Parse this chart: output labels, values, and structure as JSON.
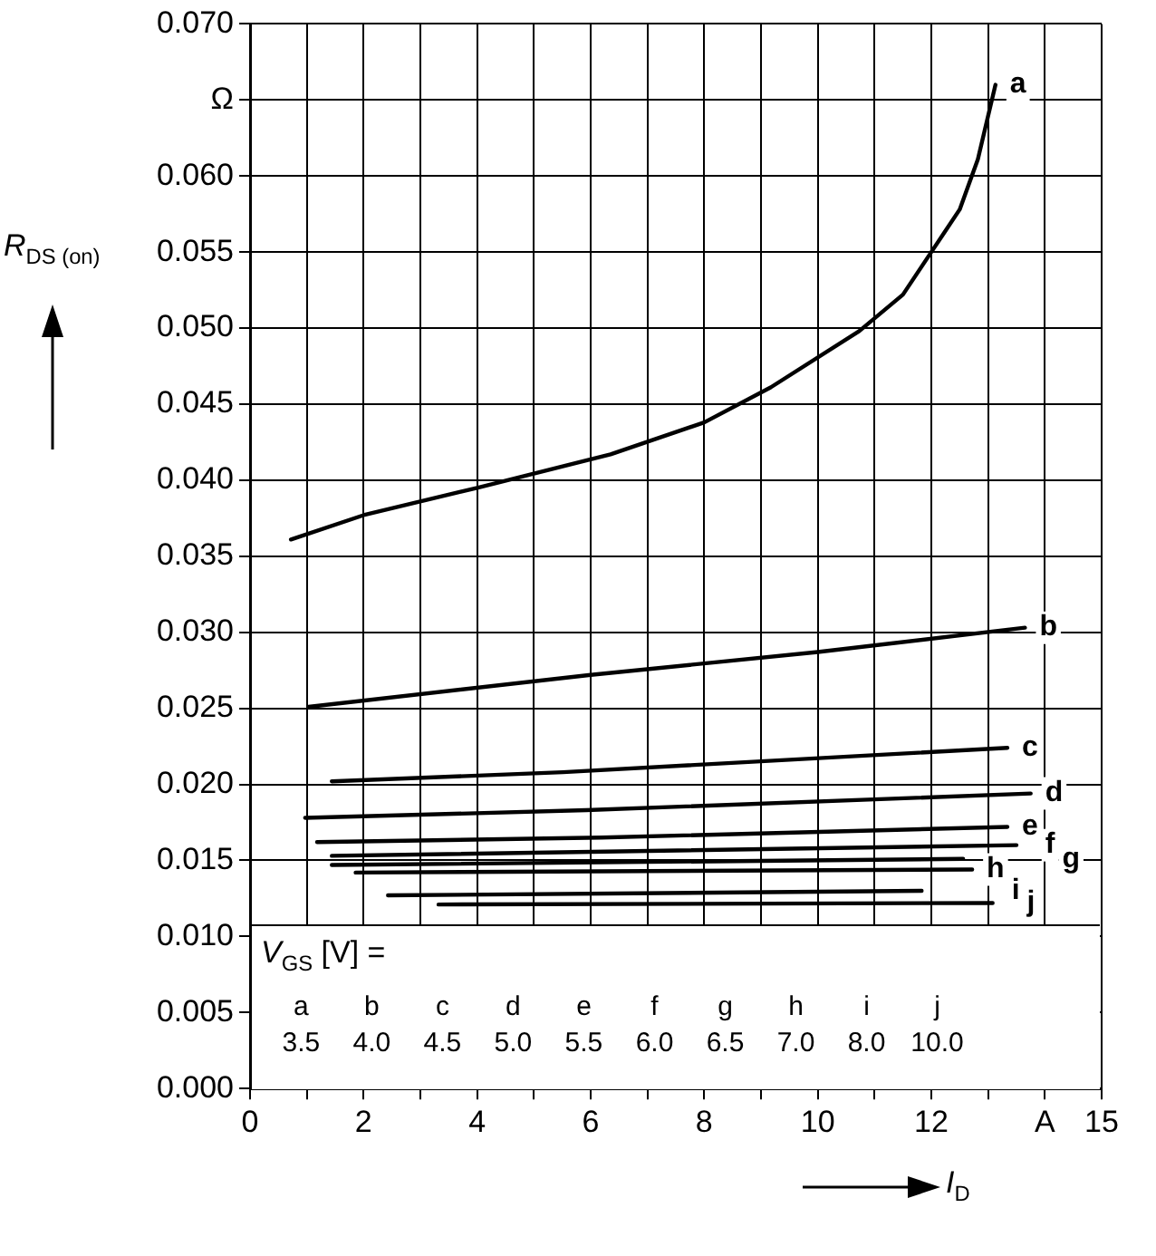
{
  "chart_data": {
    "type": "line",
    "xlabel": "I$_{D}$",
    "ylabel": "R$_{DS (on)}$",
    "xlim": [
      0,
      15
    ],
    "xticks": [
      0,
      {
        "value": 1,
        "label": null
      },
      2,
      {
        "value": 3,
        "label": null
      },
      4,
      {
        "value": 5,
        "label": null
      },
      6,
      {
        "value": 7,
        "label": null
      },
      8,
      {
        "value": 9,
        "label": null
      },
      10,
      {
        "value": 11,
        "label": null
      },
      12,
      {
        "value": 13,
        "label": null
      },
      {
        "value": 14,
        "label": "A"
      },
      15
    ],
    "ylim": [
      0,
      0.07
    ],
    "yticks": [
      {
        "value": 0,
        "label": "0.000"
      },
      {
        "value": 0.005,
        "label": "0.005"
      },
      {
        "value": 0.01,
        "label": "0.010"
      },
      {
        "value": 0.015,
        "label": "0.015"
      },
      {
        "value": 0.02,
        "label": "0.020"
      },
      {
        "value": 0.025,
        "label": "0.025"
      },
      {
        "value": 0.03,
        "label": "0.030"
      },
      {
        "value": 0.035,
        "label": "0.035"
      },
      {
        "value": 0.04,
        "label": "0.040"
      },
      {
        "value": 0.045,
        "label": "0.045"
      },
      {
        "value": 0.05,
        "label": "0.050"
      },
      {
        "value": 0.055,
        "label": "0.055"
      },
      {
        "value": 0.06,
        "label": "0.060"
      },
      {
        "value": 0.065,
        "label": "Ω"
      },
      {
        "value": 0.07,
        "label": "0.070"
      }
    ],
    "grid": true,
    "legend": false,
    "marker": "none",
    "line_style": "solid",
    "series": [
      {
        "name": "a",
        "color": "#000000",
        "x": [
          0.72,
          2,
          4,
          6.35,
          8,
          9.17,
          10.73,
          11.5,
          12,
          12.5,
          12.82,
          13.13
        ],
        "values": [
          0.0361,
          0.0377,
          0.0395,
          0.0417,
          0.0438,
          0.0461,
          0.0498,
          0.0522,
          0.055,
          0.0578,
          0.0611,
          0.066
        ]
      },
      {
        "name": "b",
        "color": "#000000",
        "x": [
          1.03,
          6,
          10,
          13.65
        ],
        "values": [
          0.0251,
          0.0272,
          0.0287,
          0.0303
        ]
      },
      {
        "name": "c",
        "color": "#000000",
        "x": [
          1.44,
          5.51,
          13.34
        ],
        "values": [
          0.0202,
          0.0208,
          0.0224
        ]
      },
      {
        "name": "d",
        "color": "#000000",
        "x": [
          0.97,
          5.92,
          13.75
        ],
        "values": [
          0.0178,
          0.0183,
          0.0194
        ]
      },
      {
        "name": "e",
        "color": "#000000",
        "x": [
          1.18,
          6.19,
          13.34
        ],
        "values": [
          0.0162,
          0.0165,
          0.0172
        ]
      },
      {
        "name": "f",
        "color": "#000000",
        "x": [
          1.44,
          13.5
        ],
        "values": [
          0.0153,
          0.016
        ]
      },
      {
        "name": "g",
        "color": "#000000",
        "x": [
          1.44,
          12.56
        ],
        "values": [
          0.0147,
          0.0151
        ]
      },
      {
        "name": "h",
        "color": "#000000",
        "x": [
          1.86,
          12.72
        ],
        "values": [
          0.0142,
          0.0144
        ]
      },
      {
        "name": "i",
        "color": "#000000",
        "x": [
          2.43,
          11.83
        ],
        "values": [
          0.0127,
          0.013
        ]
      },
      {
        "name": "j",
        "color": "#000000",
        "x": [
          3.32,
          13.08
        ],
        "values": [
          0.0121,
          0.0122
        ]
      }
    ],
    "annotations": [
      "V$_{GS}$ [V] =",
      "a 3.5",
      "b 4.0",
      "c 4.5",
      "d 5.0",
      "e 5.5",
      "f 6.0",
      "g 6.5",
      "h 7.0",
      "i 8.0",
      "j 10.0"
    ]
  }
}
